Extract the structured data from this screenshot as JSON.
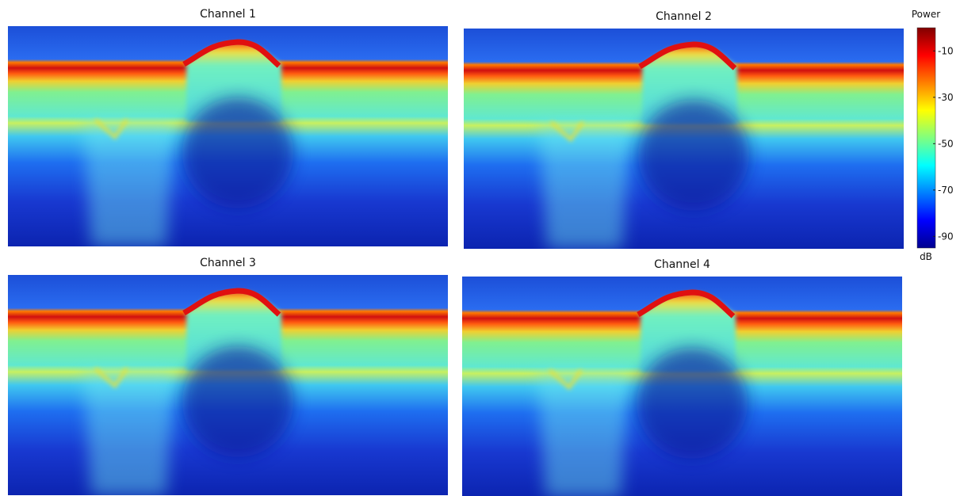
{
  "panels": [
    {
      "title": "Channel 1"
    },
    {
      "title": "Channel 2"
    },
    {
      "title": "Channel 3"
    },
    {
      "title": "Channel 4"
    }
  ],
  "colorbar": {
    "label": "Power",
    "unit": "dB",
    "range": [
      -95,
      0
    ],
    "ticks": [
      -10,
      -30,
      -50,
      -70,
      -90
    ]
  }
}
